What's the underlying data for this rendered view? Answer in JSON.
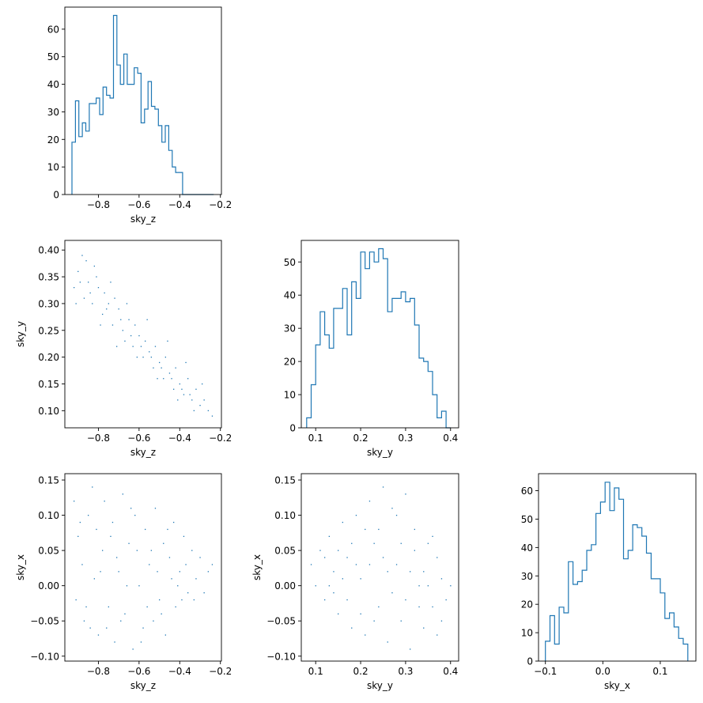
{
  "figure": {
    "line_color": "#1f77b4",
    "point_color": "#1f77b4",
    "axes_color": "#000000"
  },
  "chart_data": [
    {
      "id": "hist_sky_z",
      "type": "histogram",
      "xlabel": "sky_z",
      "ylabel": "",
      "xlim": [
        -0.965,
        -0.195
      ],
      "ylim": [
        0,
        68
      ],
      "xticks": [
        -0.8,
        -0.6,
        -0.4,
        -0.2
      ],
      "xtick_labels": [
        "−0.8",
        "−0.6",
        "−0.4",
        "−0.2"
      ],
      "yticks": [
        0,
        10,
        20,
        30,
        40,
        50,
        60
      ],
      "ytick_labels": [
        "0",
        "10",
        "20",
        "30",
        "40",
        "50",
        "60"
      ],
      "bin_edges": [
        -0.93,
        -0.913,
        -0.896,
        -0.879,
        -0.862,
        -0.845,
        -0.828,
        -0.811,
        -0.794,
        -0.777,
        -0.76,
        -0.743,
        -0.726,
        -0.709,
        -0.692,
        -0.675,
        -0.658,
        -0.641,
        -0.624,
        -0.607,
        -0.59,
        -0.573,
        -0.556,
        -0.539,
        -0.522,
        -0.505,
        -0.488,
        -0.471,
        -0.454,
        -0.437,
        -0.42,
        -0.403,
        -0.386,
        -0.369,
        -0.352,
        -0.335,
        -0.318,
        -0.301,
        -0.284,
        -0.267,
        -0.25,
        -0.233
      ],
      "counts": [
        19,
        34,
        21,
        26,
        23,
        33,
        33,
        35,
        29,
        39,
        36,
        35,
        65,
        47,
        40,
        51,
        40,
        40,
        46,
        44,
        26,
        31,
        41,
        32,
        31,
        25,
        19,
        25,
        16,
        10,
        8,
        8,
        0,
        0,
        0,
        0,
        0,
        0,
        0,
        0,
        0
      ]
    },
    {
      "id": "scatter_sky_z_sky_y",
      "type": "scatter",
      "xlabel": "sky_z",
      "ylabel": "sky_y",
      "xlim": [
        -0.965,
        -0.195
      ],
      "ylim": [
        0.068,
        0.418
      ],
      "xticks": [
        -0.8,
        -0.6,
        -0.4,
        -0.2
      ],
      "xtick_labels": [
        "−0.8",
        "−0.6",
        "−0.4",
        "−0.2"
      ],
      "yticks": [
        0.1,
        0.15,
        0.2,
        0.25,
        0.3,
        0.35,
        0.4
      ],
      "ytick_labels": [
        "0.10",
        "0.15",
        "0.20",
        "0.25",
        "0.30",
        "0.35",
        "0.40"
      ],
      "points": [
        [
          -0.92,
          0.33
        ],
        [
          -0.9,
          0.36
        ],
        [
          -0.88,
          0.39
        ],
        [
          -0.87,
          0.31
        ],
        [
          -0.85,
          0.34
        ],
        [
          -0.83,
          0.3
        ],
        [
          -0.82,
          0.37
        ],
        [
          -0.8,
          0.33
        ],
        [
          -0.78,
          0.28
        ],
        [
          -0.77,
          0.32
        ],
        [
          -0.75,
          0.3
        ],
        [
          -0.73,
          0.26
        ],
        [
          -0.72,
          0.31
        ],
        [
          -0.7,
          0.29
        ],
        [
          -0.68,
          0.25
        ],
        [
          -0.67,
          0.23
        ],
        [
          -0.65,
          0.27
        ],
        [
          -0.63,
          0.22
        ],
        [
          -0.62,
          0.26
        ],
        [
          -0.6,
          0.24
        ],
        [
          -0.58,
          0.2
        ],
        [
          -0.57,
          0.23
        ],
        [
          -0.55,
          0.21
        ],
        [
          -0.53,
          0.18
        ],
        [
          -0.52,
          0.22
        ],
        [
          -0.5,
          0.19
        ],
        [
          -0.48,
          0.16
        ],
        [
          -0.47,
          0.2
        ],
        [
          -0.45,
          0.17
        ],
        [
          -0.43,
          0.14
        ],
        [
          -0.42,
          0.18
        ],
        [
          -0.4,
          0.15
        ],
        [
          -0.38,
          0.13
        ],
        [
          -0.36,
          0.16
        ],
        [
          -0.34,
          0.12
        ],
        [
          -0.32,
          0.14
        ],
        [
          -0.3,
          0.11
        ],
        [
          -0.28,
          0.12
        ],
        [
          -0.26,
          0.1
        ],
        [
          -0.24,
          0.09
        ],
        [
          -0.91,
          0.3
        ],
        [
          -0.86,
          0.38
        ],
        [
          -0.81,
          0.35
        ],
        [
          -0.79,
          0.26
        ],
        [
          -0.74,
          0.34
        ],
        [
          -0.71,
          0.22
        ],
        [
          -0.66,
          0.3
        ],
        [
          -0.61,
          0.2
        ],
        [
          -0.56,
          0.27
        ],
        [
          -0.51,
          0.16
        ],
        [
          -0.46,
          0.23
        ],
        [
          -0.41,
          0.12
        ],
        [
          -0.37,
          0.19
        ],
        [
          -0.33,
          0.1
        ],
        [
          -0.29,
          0.15
        ],
        [
          -0.89,
          0.34
        ],
        [
          -0.84,
          0.32
        ],
        [
          -0.76,
          0.29
        ],
        [
          -0.69,
          0.27
        ],
        [
          -0.64,
          0.24
        ],
        [
          -0.59,
          0.22
        ],
        [
          -0.54,
          0.2
        ],
        [
          -0.49,
          0.18
        ],
        [
          -0.44,
          0.16
        ],
        [
          -0.39,
          0.14
        ],
        [
          -0.35,
          0.13
        ]
      ]
    },
    {
      "id": "hist_sky_y",
      "type": "histogram",
      "xlabel": "sky_y",
      "ylabel": "",
      "xlim": [
        0.068,
        0.418
      ],
      "ylim": [
        0,
        56.5
      ],
      "xticks": [
        0.1,
        0.2,
        0.3,
        0.4
      ],
      "xtick_labels": [
        "0.1",
        "0.2",
        "0.3",
        "0.4"
      ],
      "yticks": [
        0,
        10,
        20,
        30,
        40,
        50
      ],
      "ytick_labels": [
        "0",
        "10",
        "20",
        "30",
        "40",
        "50"
      ],
      "bin_edges": [
        0.08,
        0.09,
        0.1,
        0.11,
        0.12,
        0.13,
        0.14,
        0.15,
        0.16,
        0.17,
        0.18,
        0.19,
        0.2,
        0.21,
        0.22,
        0.23,
        0.24,
        0.25,
        0.26,
        0.27,
        0.28,
        0.29,
        0.3,
        0.31,
        0.32,
        0.33,
        0.34,
        0.35,
        0.36,
        0.37,
        0.38,
        0.39,
        0.4
      ],
      "counts": [
        3,
        13,
        25,
        35,
        28,
        24,
        36,
        36,
        42,
        28,
        44,
        39,
        53,
        48,
        53,
        50,
        54,
        51,
        35,
        39,
        39,
        41,
        38,
        39,
        31,
        21,
        20,
        17,
        10,
        3,
        5,
        0
      ]
    },
    {
      "id": "scatter_sky_z_sky_x",
      "type": "scatter",
      "xlabel": "sky_z",
      "ylabel": "sky_x",
      "xlim": [
        -0.965,
        -0.195
      ],
      "ylim": [
        -0.107,
        0.159
      ],
      "xticks": [
        -0.8,
        -0.6,
        -0.4,
        -0.2
      ],
      "xtick_labels": [
        "−0.8",
        "−0.6",
        "−0.4",
        "−0.2"
      ],
      "yticks": [
        -0.1,
        -0.05,
        0.0,
        0.05,
        0.1,
        0.15
      ],
      "ytick_labels": [
        "−0.10",
        "−0.05",
        "0.00",
        "0.05",
        "0.10",
        "0.15"
      ],
      "points": [
        [
          -0.92,
          0.12
        ],
        [
          -0.9,
          0.07
        ],
        [
          -0.88,
          0.03
        ],
        [
          -0.91,
          -0.02
        ],
        [
          -0.87,
          -0.05
        ],
        [
          -0.85,
          0.1
        ],
        [
          -0.83,
          0.14
        ],
        [
          -0.82,
          0.01
        ],
        [
          -0.8,
          -0.07
        ],
        [
          -0.78,
          0.05
        ],
        [
          -0.77,
          0.12
        ],
        [
          -0.75,
          -0.03
        ],
        [
          -0.73,
          0.09
        ],
        [
          -0.72,
          -0.08
        ],
        [
          -0.7,
          0.02
        ],
        [
          -0.68,
          0.13
        ],
        [
          -0.67,
          -0.04
        ],
        [
          -0.65,
          0.06
        ],
        [
          -0.63,
          -0.09
        ],
        [
          -0.62,
          0.1
        ],
        [
          -0.6,
          0.0
        ],
        [
          -0.58,
          -0.06
        ],
        [
          -0.57,
          0.08
        ],
        [
          -0.55,
          0.03
        ],
        [
          -0.53,
          -0.05
        ],
        [
          -0.52,
          0.11
        ],
        [
          -0.5,
          -0.02
        ],
        [
          -0.48,
          0.06
        ],
        [
          -0.47,
          -0.07
        ],
        [
          -0.45,
          0.04
        ],
        [
          -0.43,
          0.09
        ],
        [
          -0.42,
          -0.03
        ],
        [
          -0.4,
          0.02
        ],
        [
          -0.38,
          0.07
        ],
        [
          -0.36,
          -0.01
        ],
        [
          -0.34,
          0.05
        ],
        [
          -0.32,
          0.01
        ],
        [
          -0.3,
          0.04
        ],
        [
          -0.28,
          -0.01
        ],
        [
          -0.26,
          0.02
        ],
        [
          -0.24,
          0.03
        ],
        [
          -0.86,
          -0.03
        ],
        [
          -0.81,
          0.08
        ],
        [
          -0.76,
          -0.06
        ],
        [
          -0.71,
          0.04
        ],
        [
          -0.66,
          0.0
        ],
        [
          -0.61,
          0.05
        ],
        [
          -0.56,
          -0.03
        ],
        [
          -0.51,
          0.02
        ],
        [
          -0.46,
          0.08
        ],
        [
          -0.41,
          0.0
        ],
        [
          -0.37,
          0.03
        ],
        [
          -0.33,
          -0.02
        ],
        [
          -0.89,
          0.09
        ],
        [
          -0.84,
          -0.06
        ],
        [
          -0.79,
          0.02
        ],
        [
          -0.74,
          0.07
        ],
        [
          -0.69,
          -0.05
        ],
        [
          -0.64,
          0.11
        ],
        [
          -0.59,
          -0.08
        ],
        [
          -0.54,
          0.05
        ],
        [
          -0.49,
          -0.04
        ],
        [
          -0.44,
          0.01
        ],
        [
          -0.39,
          -0.02
        ]
      ]
    },
    {
      "id": "scatter_sky_y_sky_x",
      "type": "scatter",
      "xlabel": "sky_y",
      "ylabel": "sky_x",
      "xlim": [
        0.068,
        0.418
      ],
      "ylim": [
        -0.107,
        0.159
      ],
      "xticks": [
        0.1,
        0.2,
        0.3,
        0.4
      ],
      "xtick_labels": [
        "0.1",
        "0.2",
        "0.3",
        "0.4"
      ],
      "yticks": [
        -0.1,
        -0.05,
        0.0,
        0.05,
        0.1,
        0.15
      ],
      "ytick_labels": [
        "−0.10",
        "−0.05",
        "0.00",
        "0.05",
        "0.10",
        "0.15"
      ],
      "points": [
        [
          0.09,
          0.03
        ],
        [
          0.1,
          0.0
        ],
        [
          0.11,
          0.05
        ],
        [
          0.12,
          -0.02
        ],
        [
          0.13,
          0.07
        ],
        [
          0.14,
          0.02
        ],
        [
          0.15,
          -0.04
        ],
        [
          0.16,
          0.09
        ],
        [
          0.17,
          0.04
        ],
        [
          0.18,
          -0.06
        ],
        [
          0.19,
          0.1
        ],
        [
          0.2,
          0.01
        ],
        [
          0.21,
          -0.07
        ],
        [
          0.22,
          0.12
        ],
        [
          0.23,
          0.06
        ],
        [
          0.24,
          -0.03
        ],
        [
          0.25,
          0.14
        ],
        [
          0.26,
          -0.08
        ],
        [
          0.27,
          0.11
        ],
        [
          0.28,
          0.03
        ],
        [
          0.29,
          -0.05
        ],
        [
          0.3,
          0.13
        ],
        [
          0.31,
          -0.09
        ],
        [
          0.32,
          0.08
        ],
        [
          0.33,
          0.0
        ],
        [
          0.34,
          -0.06
        ],
        [
          0.35,
          0.06
        ],
        [
          0.36,
          -0.03
        ],
        [
          0.37,
          0.04
        ],
        [
          0.38,
          0.01
        ],
        [
          0.39,
          -0.02
        ],
        [
          0.4,
          0.0
        ],
        [
          0.12,
          0.04
        ],
        [
          0.14,
          -0.01
        ],
        [
          0.16,
          0.01
        ],
        [
          0.18,
          0.06
        ],
        [
          0.2,
          -0.04
        ],
        [
          0.22,
          0.03
        ],
        [
          0.24,
          0.08
        ],
        [
          0.26,
          0.02
        ],
        [
          0.28,
          0.1
        ],
        [
          0.3,
          -0.02
        ],
        [
          0.32,
          0.05
        ],
        [
          0.34,
          0.02
        ],
        [
          0.36,
          0.07
        ],
        [
          0.38,
          -0.05
        ],
        [
          0.13,
          0.0
        ],
        [
          0.15,
          0.05
        ],
        [
          0.17,
          -0.02
        ],
        [
          0.19,
          0.03
        ],
        [
          0.21,
          0.08
        ],
        [
          0.23,
          -0.05
        ],
        [
          0.25,
          0.04
        ],
        [
          0.27,
          -0.01
        ],
        [
          0.29,
          0.06
        ],
        [
          0.31,
          0.02
        ],
        [
          0.33,
          -0.03
        ],
        [
          0.35,
          0.0
        ],
        [
          0.37,
          -0.07
        ]
      ]
    },
    {
      "id": "hist_sky_x",
      "type": "histogram",
      "xlabel": "sky_x",
      "ylabel": "",
      "xlim": [
        -0.112,
        0.162
      ],
      "ylim": [
        0,
        66
      ],
      "xticks": [
        -0.1,
        0.0,
        0.1
      ],
      "xtick_labels": [
        "−0.1",
        "0.0",
        "0.1"
      ],
      "yticks": [
        0,
        10,
        20,
        30,
        40,
        50,
        60
      ],
      "ytick_labels": [
        "0",
        "10",
        "20",
        "30",
        "40",
        "50",
        "60"
      ],
      "bin_edges": [
        -0.1,
        -0.092,
        -0.084,
        -0.076,
        -0.068,
        -0.06,
        -0.052,
        -0.044,
        -0.036,
        -0.028,
        -0.02,
        -0.012,
        -0.004,
        0.004,
        0.012,
        0.02,
        0.028,
        0.036,
        0.044,
        0.052,
        0.06,
        0.068,
        0.076,
        0.084,
        0.092,
        0.1,
        0.108,
        0.116,
        0.124,
        0.132,
        0.14,
        0.148
      ],
      "counts": [
        7,
        16,
        6,
        19,
        17,
        35,
        27,
        28,
        32,
        39,
        41,
        52,
        56,
        63,
        53,
        61,
        57,
        36,
        39,
        48,
        47,
        44,
        38,
        29,
        29,
        24,
        15,
        17,
        12,
        8,
        6
      ]
    }
  ]
}
